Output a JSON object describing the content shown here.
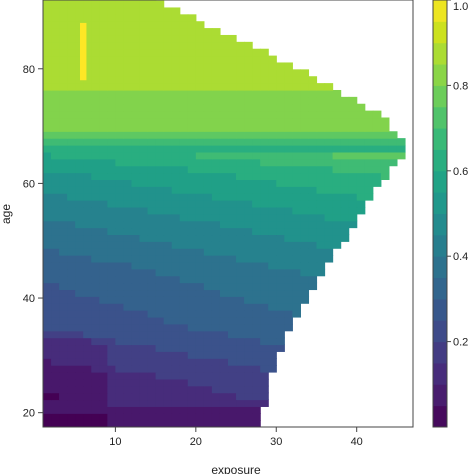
{
  "chart_data": {
    "type": "heatmap",
    "title": "",
    "xlabel": "exposure",
    "ylabel": "age",
    "xlim": [
      1,
      47
    ],
    "ylim": [
      17.5,
      92
    ],
    "x_ticks": [
      {
        "value": 10,
        "label": "10"
      },
      {
        "value": 20,
        "label": "20"
      },
      {
        "value": 30,
        "label": "30"
      },
      {
        "value": 40,
        "label": "40"
      }
    ],
    "y_ticks": [
      {
        "value": 20,
        "label": "20"
      },
      {
        "value": 40,
        "label": "40"
      },
      {
        "value": 60,
        "label": "60"
      },
      {
        "value": 80,
        "label": "80"
      }
    ],
    "colorbar": {
      "palette": "viridis",
      "range": [
        0,
        1
      ],
      "tick_labels": [
        {
          "value": 0.2,
          "label": "0.2"
        },
        {
          "value": 0.4,
          "label": "0.4"
        },
        {
          "value": 0.6,
          "label": "0.6"
        },
        {
          "value": 0.8,
          "label": "0.8"
        },
        {
          "value": 1.0,
          "label": "1.0"
        }
      ]
    },
    "surface": {
      "description_of_levels": "predicted value rises with age; above ~68 near 0.85, below ~25 near 0.05-0.15",
      "age_levels": [
        {
          "age": 18,
          "value": 0.07
        },
        {
          "age": 25,
          "value": 0.12
        },
        {
          "age": 35,
          "value": 0.25
        },
        {
          "age": 45,
          "value": 0.33
        },
        {
          "age": 55,
          "value": 0.45
        },
        {
          "age": 62,
          "value": 0.55
        },
        {
          "age": 66,
          "value": 0.65
        },
        {
          "age": 70,
          "value": 0.8
        },
        {
          "age": 80,
          "value": 0.87
        },
        {
          "age": 90,
          "value": 0.9
        }
      ],
      "boundary": [
        {
          "age": 17.5,
          "max_exposure": 28
        },
        {
          "age": 30,
          "max_exposure": 30
        },
        {
          "age": 45,
          "max_exposure": 36
        },
        {
          "age": 60,
          "max_exposure": 43
        },
        {
          "age": 66,
          "max_exposure": 46.5
        },
        {
          "age": 72,
          "max_exposure": 43
        },
        {
          "age": 80,
          "max_exposure": 33
        },
        {
          "age": 86,
          "max_exposure": 24
        },
        {
          "age": 92,
          "max_exposure": 15
        }
      ]
    }
  }
}
